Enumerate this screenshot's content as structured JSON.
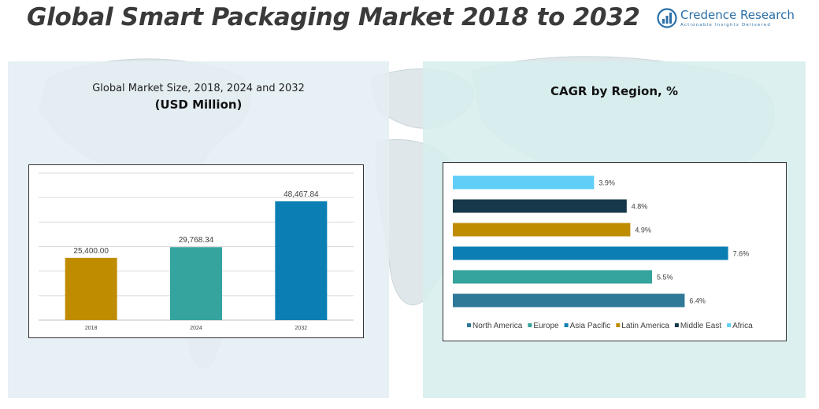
{
  "header": {
    "title": "Global Smart Packaging Market 2018 to 2032",
    "brand_name": "Credence Research",
    "brand_tagline": "Actionable Insights Delivered"
  },
  "left_panel": {
    "title": "Global Market Size, 2018, 2024 and 2032",
    "subtitle": "(USD Million)"
  },
  "right_panel": {
    "title": "CAGR by Region, %"
  },
  "chart_data": [
    {
      "type": "bar",
      "title": "Global Market Size, 2018, 2024 and 2032",
      "subtitle": "(USD Million)",
      "categories": [
        "2018",
        "2024",
        "2032"
      ],
      "values": [
        25400.0,
        29768.34,
        48467.84
      ],
      "value_labels": [
        "25,400.00",
        "29,768.34",
        "48,467.84"
      ],
      "colors": [
        "#bf8c00",
        "#35a39e",
        "#0b7fb3"
      ],
      "ylim": [
        0,
        60000
      ],
      "grid": true,
      "xlabel": "",
      "ylabel": ""
    },
    {
      "type": "bar",
      "orientation": "horizontal",
      "title": "CAGR by Region, %",
      "categories": [
        "Africa",
        "Middle East",
        "Latin America",
        "Asia Pacific",
        "Europe",
        "North America"
      ],
      "values": [
        3.9,
        4.8,
        4.9,
        7.6,
        5.5,
        6.4
      ],
      "value_labels": [
        "3.9%",
        "4.8%",
        "4.9%",
        "7.6%",
        "5.5%",
        "6.4%"
      ],
      "colors": [
        "#5fcff7",
        "#17384a",
        "#bf8c00",
        "#0b7fb3",
        "#35a39e",
        "#2e7898"
      ],
      "xlim": [
        0,
        8
      ],
      "legend": {
        "position": "bottom",
        "entries": [
          "North America",
          "Europe",
          "Asia Pacific",
          "Latin America",
          "Middle East",
          "Africa"
        ],
        "colors": [
          "#2e7898",
          "#35a39e",
          "#0b7fb3",
          "#bf8c00",
          "#17384a",
          "#5fcff7"
        ]
      }
    }
  ]
}
